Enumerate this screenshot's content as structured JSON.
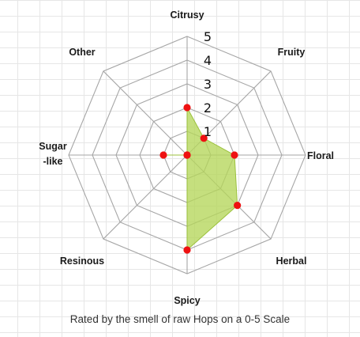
{
  "chart_data": {
    "type": "radar",
    "title": "",
    "categories": [
      "Citrusy",
      "Fruity",
      "Floral",
      "Herbal",
      "Spicy",
      "Resinous",
      "Sugar\n-like",
      "Other"
    ],
    "series": [
      {
        "values": [
          2,
          1,
          2,
          3,
          4,
          0,
          1,
          0
        ]
      }
    ],
    "rmax": 5,
    "ticks": [
      1,
      2,
      3,
      4,
      5
    ],
    "colors": {
      "fill": "#b5d65a",
      "line": "#9cc23e",
      "marker": "#ee1111",
      "grid": "#a6a6a6"
    }
  },
  "caption": "Rated by the smell of raw Hops on a 0-5 Scale"
}
